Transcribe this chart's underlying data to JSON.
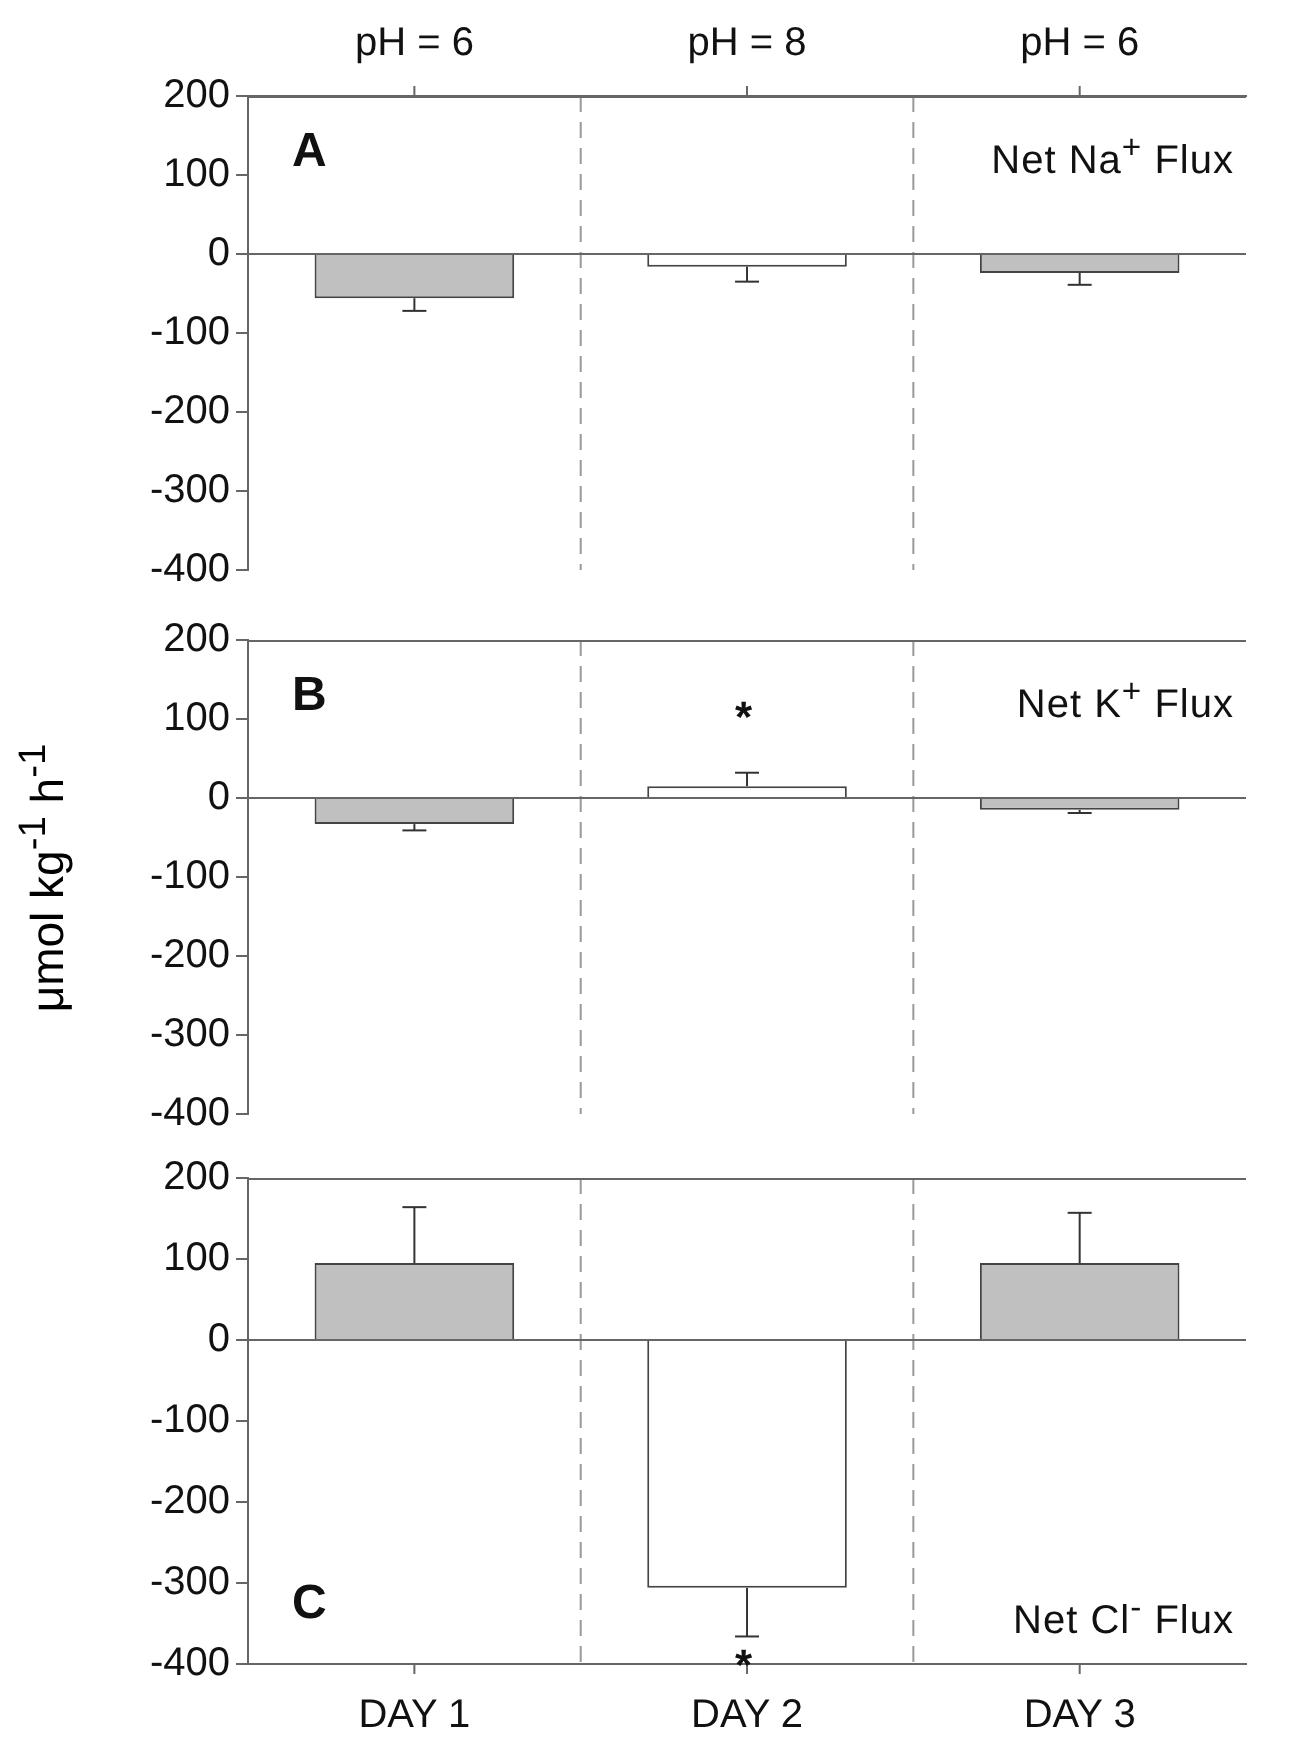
{
  "chart_data": [
    {
      "type": "bar",
      "categories": [
        "pH = 6",
        "pH = 8",
        "pH = 6"
      ],
      "values": [
        -56,
        -16,
        -24
      ],
      "colors": [
        "#c0c0c0",
        "#ffffff",
        "#c0c0c0"
      ],
      "errors": [
        [
          -72,
          -56
        ],
        [
          -35,
          -16
        ],
        [
          -39,
          -24
        ]
      ],
      "ylim": [
        -400,
        200
      ],
      "yticks": [
        -400,
        -300,
        -200,
        -100,
        0,
        100,
        200
      ],
      "grid": "x",
      "annotations": [
        "A",
        "Net Na$^{+}$ Flux"
      ]
    },
    {
      "type": "bar",
      "categories": [
        null,
        null,
        null
      ],
      "values": [
        -33,
        15,
        -15
      ],
      "colors": [
        "#c0c0c0",
        "#ffffff",
        "#c0c0c0"
      ],
      "errors": [
        [
          -41,
          -33
        ],
        [
          15,
          32
        ],
        [
          -19,
          -15
        ]
      ],
      "ylim": [
        -400,
        200
      ],
      "yticks": [
        -400,
        -300,
        -200,
        -100,
        0,
        100,
        200
      ],
      "grid": "x",
      "tick_labels": "y",
      "ylabel": "μmol kg$^{-1}$ h$^{-1}$",
      "annotations": [
        "B",
        "Net K$^{+}$ Flux",
        "*"
      ]
    },
    {
      "type": "bar",
      "categories": [
        "DAY 1",
        "DAY 2",
        "DAY 3"
      ],
      "values": [
        95,
        -306,
        95
      ],
      "colors": [
        "#c0c0c0",
        "#ffffff",
        "#c0c0c0"
      ],
      "errors": [
        [
          95,
          164
        ],
        [
          -366,
          -306
        ],
        [
          95,
          157
        ]
      ],
      "ylim": [
        -400,
        200
      ],
      "yticks": [
        -400,
        -300,
        -200,
        -100,
        0,
        100,
        200
      ],
      "grid": "x",
      "annotations": [
        "C",
        "Net Cl$^{-}$ Flux",
        "*"
      ]
    }
  ]
}
